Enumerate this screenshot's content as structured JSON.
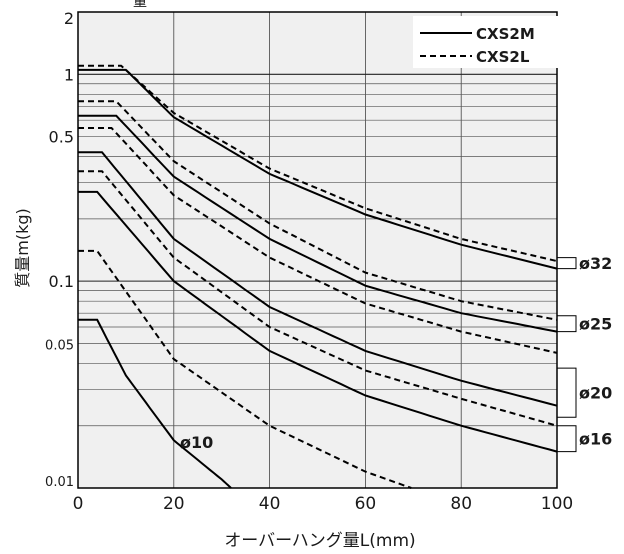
{
  "chart_data": {
    "type": "line",
    "title_fragment": "量",
    "xlabel": "オーバーハング量L(mm)",
    "ylabel": "質量m(kg)",
    "xlim": [
      0,
      100
    ],
    "ylim": [
      0.01,
      2
    ],
    "yscale": "log",
    "x_ticks": [
      "0",
      "20",
      "40",
      "60",
      "80",
      "100"
    ],
    "x_tick_values": [
      0,
      20,
      40,
      60,
      80,
      100
    ],
    "y_ticks": [
      "2",
      "1",
      "0.5",
      "0.1",
      "0.05",
      "0.01"
    ],
    "y_tick_values": [
      2,
      1,
      0.5,
      0.1,
      0.05,
      0.01
    ],
    "background": "#f0f0f0",
    "grid": true,
    "legend": [
      {
        "label": "CXS2M",
        "style": "solid"
      },
      {
        "label": "CXS2L",
        "style": "dashed"
      }
    ],
    "legend_position": "top-right",
    "bore_labels": [
      {
        "label": "ø32",
        "y_range": [
          0.115,
          0.13
        ]
      },
      {
        "label": "ø25",
        "y_range": [
          0.057,
          0.068
        ]
      },
      {
        "label": "ø20",
        "y_range": [
          0.022,
          0.038
        ]
      },
      {
        "label": "ø16",
        "y_range": [
          0.015,
          0.02
        ]
      }
    ],
    "annotation": {
      "text": "ø10",
      "x": 43,
      "y": 0.016
    },
    "series": [
      {
        "name": "CXS2M",
        "bore": "ø32",
        "style": "solid",
        "x": [
          0,
          10,
          20,
          40,
          60,
          80,
          100
        ],
        "y": [
          1.05,
          1.05,
          0.62,
          0.33,
          0.21,
          0.15,
          0.115
        ]
      },
      {
        "name": "CXS2L",
        "bore": "ø32",
        "style": "dashed",
        "x": [
          0,
          9,
          20,
          40,
          60,
          80,
          100
        ],
        "y": [
          1.1,
          1.1,
          0.65,
          0.35,
          0.225,
          0.16,
          0.125
        ]
      },
      {
        "name": "CXS2M",
        "bore": "ø25",
        "style": "solid",
        "x": [
          0,
          8,
          20,
          40,
          60,
          80,
          100
        ],
        "y": [
          0.63,
          0.63,
          0.32,
          0.16,
          0.095,
          0.07,
          0.057
        ]
      },
      {
        "name": "CXS2L",
        "bore": "ø25",
        "style": "dashed",
        "x": [
          0,
          8,
          20,
          40,
          60,
          80,
          100
        ],
        "y": [
          0.74,
          0.74,
          0.38,
          0.19,
          0.11,
          0.08,
          0.065
        ]
      },
      {
        "name": "CXS2M",
        "bore": "ø25",
        "style": "dashed",
        "x": [
          0,
          7,
          20,
          40,
          60,
          80,
          100
        ],
        "y": [
          0.55,
          0.55,
          0.26,
          0.13,
          0.078,
          0.057,
          0.045
        ]
      },
      {
        "name": "CXS2M",
        "bore": "ø20",
        "style": "solid",
        "x": [
          0,
          5,
          20,
          40,
          60,
          80,
          100
        ],
        "y": [
          0.42,
          0.42,
          0.16,
          0.075,
          0.046,
          0.033,
          0.025
        ]
      },
      {
        "name": "CXS2L",
        "bore": "ø20",
        "style": "dashed",
        "x": [
          0,
          5,
          20,
          40,
          60,
          80,
          100
        ],
        "y": [
          0.34,
          0.34,
          0.13,
          0.06,
          0.037,
          0.027,
          0.02
        ]
      },
      {
        "name": "CXS2M",
        "bore": "ø16",
        "style": "solid",
        "x": [
          0,
          4,
          20,
          40,
          60,
          80,
          100
        ],
        "y": [
          0.27,
          0.27,
          0.1,
          0.046,
          0.028,
          0.02,
          0.015
        ]
      },
      {
        "name": "CXS2L",
        "bore": "ø16",
        "style": "dashed",
        "x": [
          0,
          4,
          20,
          40,
          60,
          80
        ],
        "y": [
          0.14,
          0.14,
          0.042,
          0.02,
          0.012,
          0.0082
        ]
      },
      {
        "name": "CXS2M",
        "bore": "ø10",
        "style": "solid",
        "x": [
          0,
          4,
          10,
          20,
          30,
          33
        ],
        "y": [
          0.065,
          0.065,
          0.035,
          0.017,
          0.011,
          0.0095
        ]
      }
    ]
  }
}
